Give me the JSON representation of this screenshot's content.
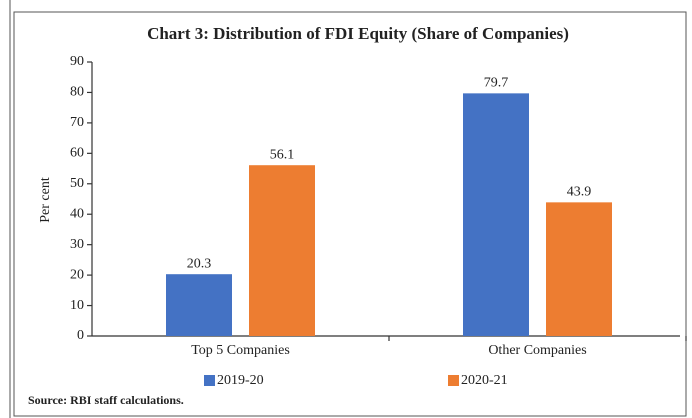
{
  "chart_data": {
    "type": "bar",
    "title": "Chart 3: Distribution of FDI Equity (Share of Companies)",
    "y_label": "Per cent",
    "categories": [
      "Top 5 Companies",
      "Other Companies"
    ],
    "series": [
      {
        "name": "2019-20",
        "color": "#4472c4",
        "values": [
          20.3,
          79.7
        ]
      },
      {
        "name": "2020-21",
        "color": "#ed7d31",
        "values": [
          56.1,
          43.9
        ]
      }
    ],
    "ylim": [
      0,
      90
    ],
    "yticks": [
      0,
      10,
      20,
      30,
      40,
      50,
      60,
      70,
      80,
      90
    ],
    "legend": "bottom",
    "source": "Source: RBI staff calculations."
  }
}
